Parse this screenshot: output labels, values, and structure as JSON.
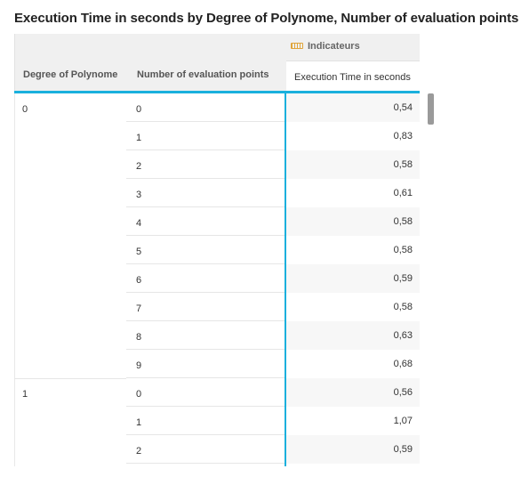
{
  "title": "Execution Time in seconds by Degree of Polynome, Number of evaluation points",
  "header": {
    "degree_label": "Degree of Polynome",
    "points_label": "Number of evaluation points",
    "indicators_label": "Indicateurs",
    "indicators_icon": "ruler-icon",
    "measure_label": "Execution Time in seconds"
  },
  "rows": [
    {
      "degree": "0",
      "points": "0",
      "value": "0,54"
    },
    {
      "degree": "",
      "points": "1",
      "value": "0,83"
    },
    {
      "degree": "",
      "points": "2",
      "value": "0,58"
    },
    {
      "degree": "",
      "points": "3",
      "value": "0,61"
    },
    {
      "degree": "",
      "points": "4",
      "value": "0,58"
    },
    {
      "degree": "",
      "points": "5",
      "value": "0,58"
    },
    {
      "degree": "",
      "points": "6",
      "value": "0,59"
    },
    {
      "degree": "",
      "points": "7",
      "value": "0,58"
    },
    {
      "degree": "",
      "points": "8",
      "value": "0,63"
    },
    {
      "degree": "",
      "points": "9",
      "value": "0,68"
    },
    {
      "degree": "1",
      "points": "0",
      "value": "0,56"
    },
    {
      "degree": "",
      "points": "1",
      "value": "1,07"
    },
    {
      "degree": "",
      "points": "2",
      "value": "0,59"
    }
  ],
  "colors": {
    "accent": "#1ab0dd",
    "indicator_icon": "#e0a43a"
  }
}
